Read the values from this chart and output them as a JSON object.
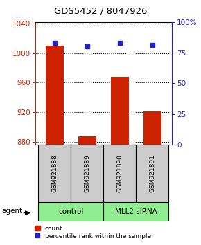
{
  "title": "GDS5452 / 8047926",
  "samples": [
    "GSM921888",
    "GSM921889",
    "GSM921890",
    "GSM921891"
  ],
  "counts": [
    1010,
    887,
    968,
    921
  ],
  "percentiles": [
    83,
    80,
    83,
    81
  ],
  "ylim_left": [
    876,
    1042
  ],
  "ylim_right": [
    0,
    100
  ],
  "yticks_left": [
    880,
    920,
    960,
    1000,
    1040
  ],
  "yticks_right": [
    0,
    25,
    50,
    75,
    100
  ],
  "groups": [
    {
      "label": "control",
      "indices": [
        0,
        1
      ],
      "color": "#90ee90"
    },
    {
      "label": "MLL2 siRNA",
      "indices": [
        2,
        3
      ],
      "color": "#90ee90"
    }
  ],
  "bar_color": "#cc2200",
  "dot_color": "#2222cc",
  "bar_width": 0.55,
  "baseline": 876,
  "left_color": "#cc2200",
  "right_color": "#2222cc",
  "agent_label": "agent"
}
